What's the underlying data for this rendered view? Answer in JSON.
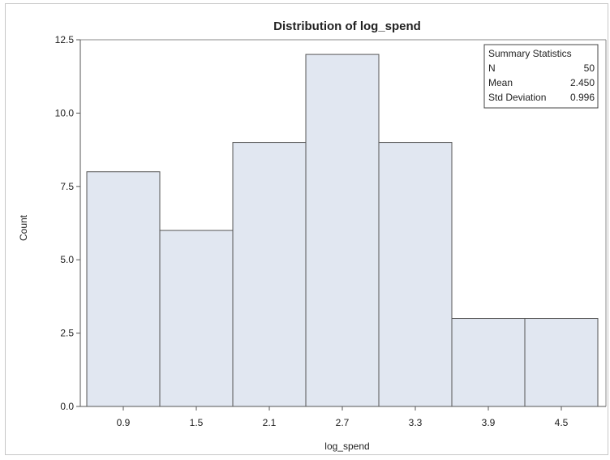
{
  "chart_data": {
    "type": "bar",
    "title": "Distribution of log_spend",
    "xlabel": "log_spend",
    "ylabel": "Count",
    "categories": [
      "0.9",
      "1.5",
      "2.1",
      "2.7",
      "3.3",
      "3.9",
      "4.5"
    ],
    "values": [
      8,
      6,
      9,
      12,
      9,
      3,
      3
    ],
    "ylim": [
      0,
      12.5
    ],
    "yticks": [
      "0.0",
      "2.5",
      "5.0",
      "7.5",
      "10.0",
      "12.5"
    ],
    "grid": false,
    "bar_fill": "#e1e7f1",
    "bar_stroke": "#555555"
  },
  "inset": {
    "title": "Summary Statistics",
    "rows": [
      {
        "label": "N",
        "value": "50"
      },
      {
        "label": "Mean",
        "value": "2.450"
      },
      {
        "label": "Std Deviation",
        "value": "0.996"
      }
    ]
  }
}
